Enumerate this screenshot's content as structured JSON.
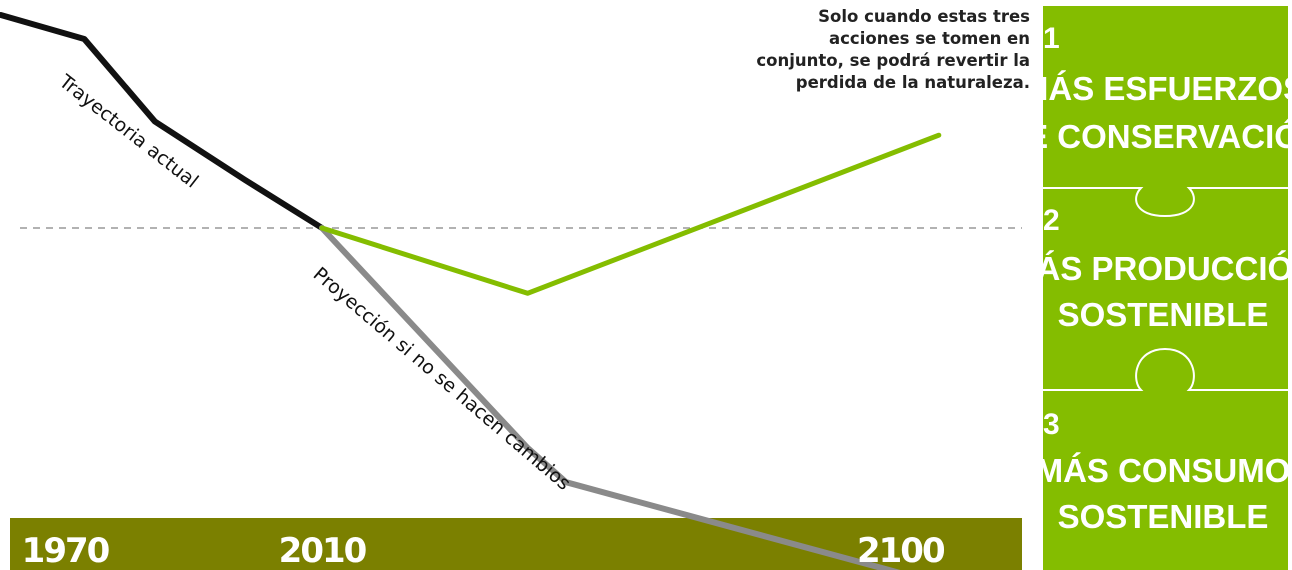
{
  "chart_data": {
    "type": "line",
    "x_ticks": [
      "1970",
      "2010",
      "2100"
    ],
    "baseline": "dashed horizontal reference line at the 2010 level",
    "series": [
      {
        "name": "Trayectoria actual",
        "color": "#111111",
        "points": [
          [
            1960,
            100
          ],
          [
            1973,
            93
          ],
          [
            1984,
            69
          ],
          [
            1998,
            52
          ],
          [
            2010,
            38
          ]
        ]
      },
      {
        "name": "Proyección si no se hacen cambios",
        "color": "#8a8a8a",
        "points": [
          [
            2010,
            38
          ],
          [
            2042,
            -26
          ],
          [
            2048,
            -36
          ],
          [
            2107,
            -66
          ]
        ]
      },
      {
        "color": "#84bd00",
        "points": [
          [
            2010,
            38
          ],
          [
            2042,
            19
          ],
          [
            2106,
            65
          ]
        ]
      }
    ],
    "note": "Solo cuando estas tres acciones se tomen en conjunto, se podrá revertir la perdida de la naturaleza."
  },
  "note_lines": [
    "Solo cuando estas tres",
    "acciones se tomen en",
    "conjunto, se podrá revertir la",
    "perdida de la naturaleza."
  ],
  "steps": [
    {
      "number": "1",
      "lines": [
        "MÁS ESFUERZOS",
        "DE CONSERVACIÓN"
      ]
    },
    {
      "number": "2",
      "lines": [
        "MÁS PRODUCCIÓN",
        "SOSTENIBLE"
      ]
    },
    {
      "number": "3",
      "lines": [
        "MÁS CONSUMO",
        "SOSTENIBLE"
      ]
    }
  ],
  "colors": {
    "axis_band": "#7b8000",
    "panel": "#84bd00",
    "panel_divider": "#ffffff",
    "baseline": "#999999"
  }
}
